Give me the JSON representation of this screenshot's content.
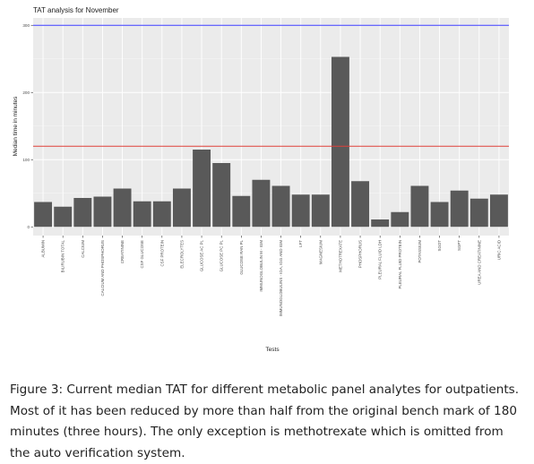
{
  "chart_data": {
    "type": "bar",
    "title": "TAT analysis for November",
    "xlabel": "Tests",
    "ylabel": "Median time in minutes",
    "ylim": [
      -13,
      311
    ],
    "yticks": [
      "0",
      "100",
      "200",
      "300"
    ],
    "categories": [
      "ALBUMIN",
      "BILIRUBIN TOTAL",
      "CALCIUM",
      "CALCIUM AND PHOSPHORUS",
      "CREATININE",
      "CSF GLUCOSE",
      "CSF PROTEIN",
      "ELECROLYTES",
      "GLUCOSE AC PL",
      "GLUCOSE PC PL",
      "GLUCOSE RAN PL",
      "IMMUNOGLOBULIN M - IGM",
      "IMMUNOGLOBULINS - IGA, IGG AND IGM",
      "LFT",
      "MAGNESIUM",
      "METHOTREXATE",
      "PHOSPHORUS",
      "PLEURAL FLUID LDH",
      "PLEURAL FLUID PROTEIN",
      "POTASSIUM",
      "SGOT",
      "SGPT",
      "UREA AND CREATININE",
      "URIC ACID"
    ],
    "values": [
      37,
      30,
      43,
      45,
      57,
      38,
      38,
      57,
      115,
      95,
      46,
      70,
      61,
      48,
      48,
      253,
      68,
      11,
      22,
      61,
      37,
      54,
      42,
      48
    ],
    "reference_lines": [
      {
        "value": 300,
        "color": "#3b3bff"
      },
      {
        "value": 120,
        "color": "#e0413a"
      }
    ],
    "bar_color": "#595959",
    "panel_color": "#ebebeb",
    "grid": true,
    "legend": "none"
  },
  "caption": {
    "text": "Figure 3: Current median TAT for different metabolic panel analytes for outpatients. Most of it has been reduced by more than half from the original bench mark of 180 minutes (three hours). The only exception is methotrexate which is omitted from the auto verification system."
  }
}
